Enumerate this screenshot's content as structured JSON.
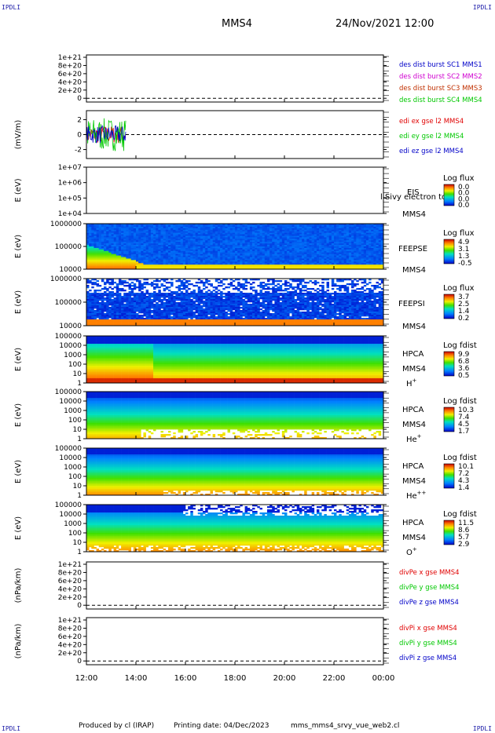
{
  "header": {
    "corner_tl": "IPDLI",
    "corner_tr": "IPDLI",
    "corner_bl": "IPDLI",
    "corner_br": "IPDLI",
    "spacecraft": "MMS4",
    "datetime": "24/Nov/2021 12:00"
  },
  "footer": {
    "produced_by": "Produced by cl (IRAP)",
    "printing_date": "Printing date: 04/Dec/2023",
    "file_name": "mms_mms4_srvy_vue_web2.cl"
  },
  "colors": {
    "red": "#e00000",
    "magenta": "#d000d0",
    "brown": "#c03000",
    "green": "#00c800",
    "blue": "#0000c8"
  },
  "x_axis": {
    "ticks": [
      "12:00",
      "14:00",
      "16:00",
      "18:00",
      "20:00",
      "22:00",
      "00:00"
    ]
  },
  "chart_data": [
    {
      "type": "line",
      "id": "p1",
      "yticks": [
        "1e+21",
        "8e+20",
        "6e+20",
        "4e+20",
        "2e+20",
        "0"
      ],
      "series": [
        {
          "name": "des dist burst SC1 MMS1",
          "color": "#0000c8"
        },
        {
          "name": "des dist burst SC2 MMS2",
          "color": "#d000d0"
        },
        {
          "name": "des dist burst SC3 MMS3",
          "color": "#c03000"
        },
        {
          "name": "des dist burst SC4 MMS4",
          "color": "#00c800"
        }
      ]
    },
    {
      "type": "line",
      "id": "p2",
      "ylabel": "(mV/m)",
      "yticks": [
        "2",
        "0",
        "-2"
      ],
      "ylim": [
        -3.2,
        3.2
      ],
      "series": [
        {
          "name": "edi ex gse l2 MMS4",
          "color": "#e00000"
        },
        {
          "name": "edi ey gse l2 MMS4",
          "color": "#00c800"
        },
        {
          "name": "edi ez gse l2 MMS4",
          "color": "#0000c8"
        }
      ]
    },
    {
      "type": "heatmap",
      "id": "p3",
      "ylabel": "E (eV)",
      "yticks": [
        "1e+07",
        "1e+06",
        "1e+05",
        "1e+04"
      ],
      "instrument": [
        "EIS",
        "MMS4"
      ],
      "overlay_text": "l Sivy electron to",
      "colorbar": {
        "title": "Log flux",
        "ticks": [
          "0.0",
          "0.0",
          "0.0",
          "0.0"
        ]
      }
    },
    {
      "type": "heatmap",
      "id": "p4",
      "ylabel": "E (eV)",
      "yticks": [
        "1000000",
        "100000",
        "10000"
      ],
      "instrument": [
        "FEEPSE",
        "MMS4"
      ],
      "colorbar": {
        "title": "Log flux",
        "ticks": [
          "4.9",
          "3.1",
          "1.3",
          "-0.5"
        ]
      }
    },
    {
      "type": "heatmap",
      "id": "p5",
      "ylabel": "E (eV)",
      "yticks": [
        "1000000",
        "100000",
        "10000"
      ],
      "instrument": [
        "FEEPSI",
        "MMS4"
      ],
      "colorbar": {
        "title": "Log flux",
        "ticks": [
          "3.7",
          "2.5",
          "1.4",
          "0.2"
        ]
      }
    },
    {
      "type": "heatmap",
      "id": "p6",
      "ylabel": "E (eV)",
      "yticks": [
        "100000",
        "10000",
        "1000",
        "100",
        "10",
        "1"
      ],
      "instrument": [
        "HPCA",
        "MMS4"
      ],
      "species": "H",
      "species_sup": "+",
      "colorbar": {
        "title": "Log fdist",
        "ticks": [
          "9.9",
          "6.8",
          "3.6",
          "0.5"
        ]
      }
    },
    {
      "type": "heatmap",
      "id": "p7",
      "ylabel": "E (eV)",
      "yticks": [
        "100000",
        "10000",
        "1000",
        "100",
        "10",
        "1"
      ],
      "instrument": [
        "HPCA",
        "MMS4"
      ],
      "species": "He",
      "species_sup": "+",
      "colorbar": {
        "title": "Log fdist",
        "ticks": [
          "10.3",
          "7.4",
          "4.5",
          "1.7"
        ]
      }
    },
    {
      "type": "heatmap",
      "id": "p8",
      "ylabel": "E (eV)",
      "yticks": [
        "100000",
        "10000",
        "1000",
        "100",
        "10",
        "1"
      ],
      "instrument": [
        "HPCA",
        "MMS4"
      ],
      "species": "He",
      "species_sup": "++",
      "colorbar": {
        "title": "Log fdist",
        "ticks": [
          "10.1",
          "7.2",
          "4.3",
          "1.4"
        ]
      }
    },
    {
      "type": "heatmap",
      "id": "p9",
      "ylabel": "E (eV)",
      "yticks": [
        "100000",
        "10000",
        "1000",
        "100",
        "10",
        "1"
      ],
      "instrument": [
        "HPCA",
        "MMS4"
      ],
      "species": "O",
      "species_sup": "+",
      "colorbar": {
        "title": "Log fdist",
        "ticks": [
          "11.5",
          "8.6",
          "5.7",
          "2.9"
        ]
      }
    },
    {
      "type": "line",
      "id": "p10",
      "ylabel": "(nPa/km)",
      "yticks": [
        "1e+21",
        "8e+20",
        "6e+20",
        "4e+20",
        "2e+20",
        "0"
      ],
      "series": [
        {
          "name": "divPe x gse MMS4",
          "color": "#e00000"
        },
        {
          "name": "divPe y gse MMS4",
          "color": "#00c800"
        },
        {
          "name": "divPe z gse MMS4",
          "color": "#0000c8"
        }
      ]
    },
    {
      "type": "line",
      "id": "p11",
      "ylabel": "(nPa/km)",
      "yticks": [
        "1e+21",
        "8e+20",
        "6e+20",
        "4e+20",
        "2e+20",
        "0"
      ],
      "series": [
        {
          "name": "divPi x gse MMS4",
          "color": "#e00000"
        },
        {
          "name": "divPi y gse MMS4",
          "color": "#00c800"
        },
        {
          "name": "divPi z gse MMS4",
          "color": "#0000c8"
        }
      ]
    }
  ]
}
